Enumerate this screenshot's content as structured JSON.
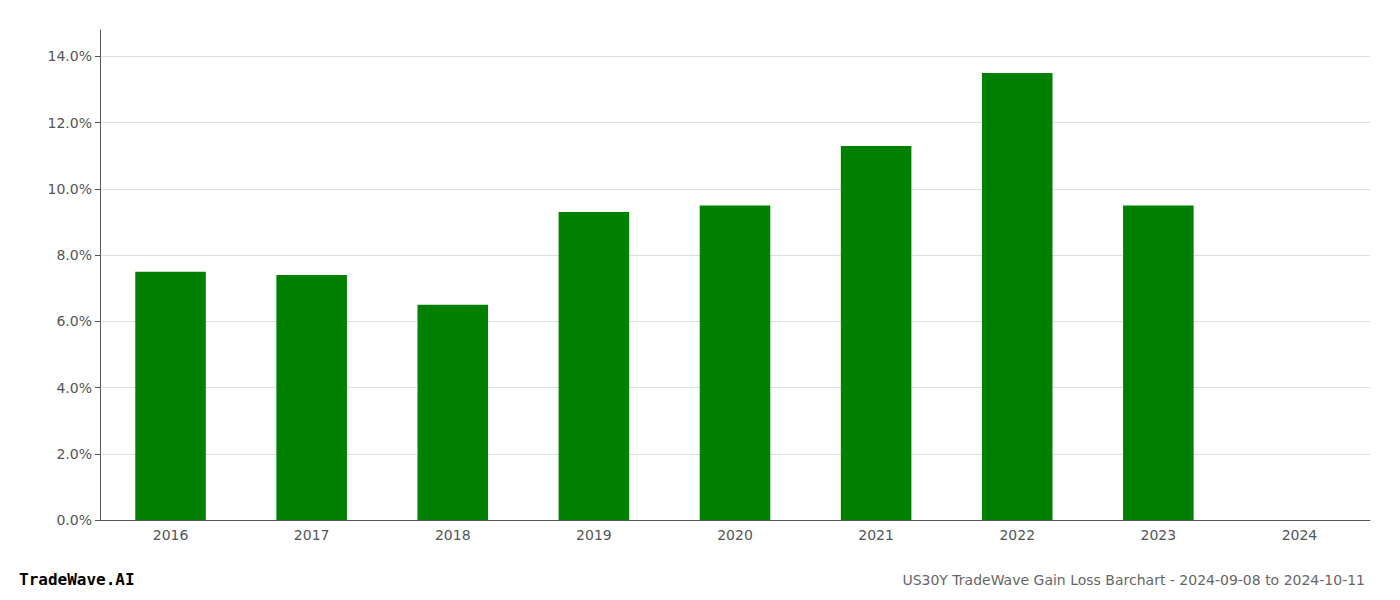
{
  "chart_data": {
    "type": "bar",
    "title": "US30Y TradeWave Gain Loss Barchart - 2024-09-08 to 2024-10-11",
    "annotations": [
      "TradeWave.AI"
    ],
    "categories": [
      "2016",
      "2017",
      "2018",
      "2019",
      "2020",
      "2021",
      "2022",
      "2023",
      "2024"
    ],
    "values": [
      0.075,
      0.074,
      0.065,
      0.093,
      0.095,
      0.113,
      0.135,
      0.095,
      null
    ],
    "color": "#008000",
    "ylim": [
      0,
      0.148
    ],
    "yticks": [
      {
        "value": 0.0,
        "label": "0.0%"
      },
      {
        "value": 0.02,
        "label": "2.0%"
      },
      {
        "value": 0.04,
        "label": "4.0%"
      },
      {
        "value": 0.06,
        "label": "6.0%"
      },
      {
        "value": 0.08,
        "label": "8.0%"
      },
      {
        "value": 0.1,
        "label": "10.0%"
      },
      {
        "value": 0.12,
        "label": "12.0%"
      },
      {
        "value": 0.14,
        "label": "14.0%"
      }
    ],
    "grid": true
  }
}
